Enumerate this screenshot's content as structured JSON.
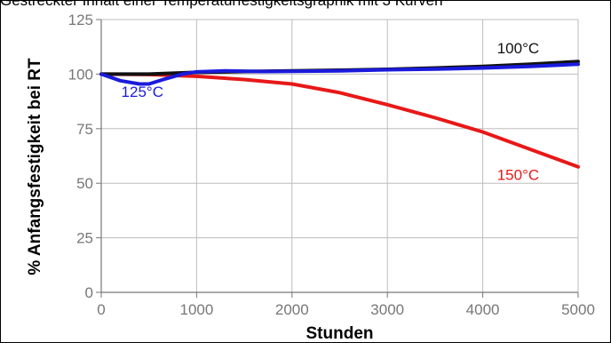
{
  "caption": "Gestreckter Inhalt einer Temperaturfestigkeitsgraphik mit 3 Kurven",
  "chart_data": {
    "type": "line",
    "title": "",
    "xlabel": "Stunden",
    "ylabel": "% Anfangsfestigkeit bei RT",
    "xlim": [
      0,
      5000
    ],
    "ylim": [
      0,
      125
    ],
    "xticks": [
      0,
      1000,
      2000,
      3000,
      4000,
      5000
    ],
    "yticks": [
      0,
      25,
      50,
      75,
      100,
      125
    ],
    "grid": true,
    "series": [
      {
        "name": "100°C",
        "color": "#111111",
        "x": [
          0,
          500,
          1000,
          1500,
          2000,
          2500,
          3000,
          3500,
          4000,
          4500,
          5000
        ],
        "y": [
          100,
          100,
          100.8,
          101.2,
          101.5,
          101.8,
          102.2,
          102.8,
          103.5,
          104.5,
          105.8
        ]
      },
      {
        "name": "125°C",
        "color": "#1a1adc",
        "x": [
          0,
          200,
          400,
          500,
          650,
          850,
          1000,
          1300,
          1700,
          2000,
          2500,
          3000,
          3500,
          4000,
          4500,
          5000
        ],
        "y": [
          100,
          97,
          95.5,
          95.5,
          97.5,
          100,
          101,
          101.5,
          101.2,
          101.3,
          101.5,
          102,
          102.3,
          102.8,
          103.5,
          104.5
        ]
      },
      {
        "name": "150°C",
        "color": "#e81818",
        "x": [
          0,
          500,
          1000,
          1500,
          2000,
          2500,
          3000,
          3500,
          4000,
          4500,
          5000
        ],
        "y": [
          100,
          99.8,
          99,
          97.5,
          95.5,
          91.5,
          86,
          80,
          73.5,
          65.5,
          57.5
        ]
      }
    ]
  }
}
